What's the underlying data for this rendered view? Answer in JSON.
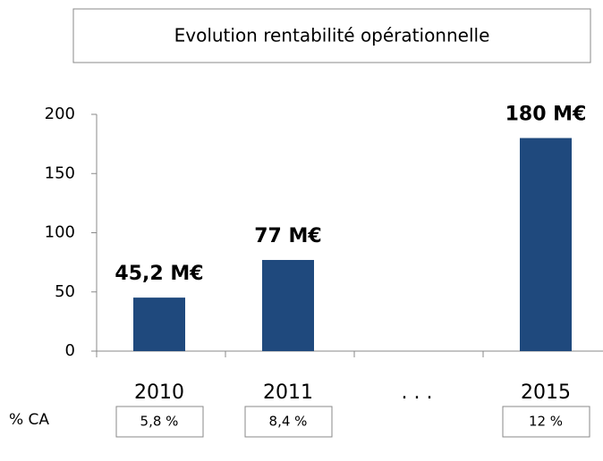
{
  "chart_data": {
    "type": "bar",
    "title": "Evolution rentabilité opérationnelle",
    "categories": [
      "2010",
      "2011",
      ". . .",
      "2015"
    ],
    "values": [
      45.2,
      77,
      null,
      180
    ],
    "value_labels": [
      "45,2 M€",
      "77 M€",
      null,
      "180 M€"
    ],
    "color": "#1f497d",
    "ylim": [
      0,
      200
    ],
    "yticks": [
      0,
      50,
      100,
      150,
      200
    ],
    "grid": false,
    "ratio_row": {
      "label": "% CA",
      "values": [
        "5,8 %",
        "8,4 %",
        null,
        "12 %"
      ]
    }
  }
}
